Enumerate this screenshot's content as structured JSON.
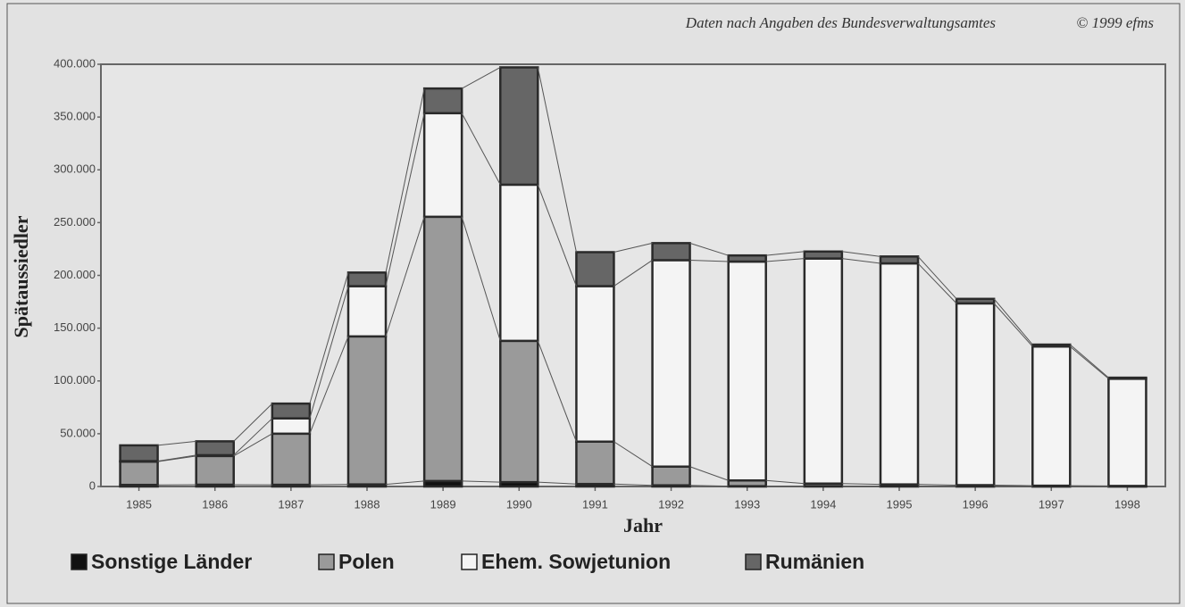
{
  "chart_data": {
    "type": "stacked_bar",
    "source": "Daten nach Angaben des Bundesverwaltungsamtes",
    "copyright": "© 1999 efms",
    "y_label": "Spätaussiedler",
    "x_label": "Jahr",
    "categories": [
      "1985",
      "1986",
      "1987",
      "1988",
      "1989",
      "1990",
      "1991",
      "1992",
      "1993",
      "1994",
      "1995",
      "1996",
      "1997",
      "1998"
    ],
    "series": [
      {
        "name": "Sonstige Länder",
        "color": "#111111",
        "values": [
          1509,
          1717,
          1622,
          1973,
          5194,
          4101,
          2368,
          1101,
          299,
          322,
          293,
          111,
          60,
          37
        ]
      },
      {
        "name": "Polen",
        "color": "#9a9a9a",
        "values": [
          22075,
          27188,
          48423,
          140226,
          250340,
          133872,
          40129,
          17742,
          5431,
          2440,
          1677,
          1175,
          687,
          488
        ]
      },
      {
        "name": "Ehem. Sowjetunion",
        "color": "#f4f4f4",
        "values": [
          460,
          753,
          14488,
          47572,
          98134,
          147950,
          147320,
          195576,
          207347,
          213214,
          209409,
          172181,
          131895,
          101550
        ]
      },
      {
        "name": "Rumänien",
        "color": "#666666",
        "values": [
          14924,
          13130,
          13990,
          12902,
          23387,
          111150,
          32178,
          16146,
          5811,
          6615,
          6519,
          4284,
          1777,
          1005
        ]
      }
    ],
    "ylim": [
      0,
      400000
    ],
    "yticks": [
      0,
      {
        "value": 50000,
        "label": "50.000"
      },
      {
        "value": 100000,
        "label": "100.000"
      },
      {
        "value": 150000,
        "label": "150.000"
      },
      {
        "value": 200000,
        "label": "200.000"
      },
      {
        "value": 250000,
        "label": "250.000"
      },
      {
        "value": 300000,
        "label": "300.000"
      },
      {
        "value": 350000,
        "label": "350.000"
      },
      {
        "value": 400000,
        "label": "400.000"
      }
    ]
  }
}
